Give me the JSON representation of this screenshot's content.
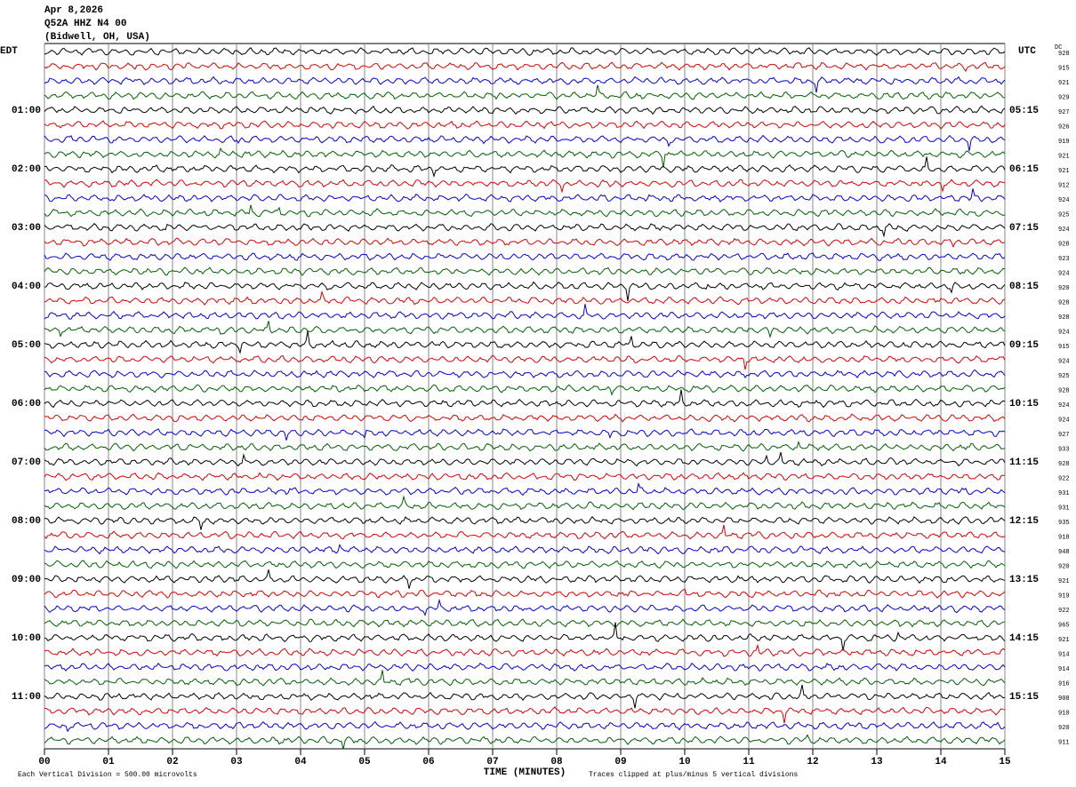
{
  "header": {
    "date": "Apr 8,2026",
    "station": "Q52A HHZ N4 00",
    "location": "(Bidwell, OH, USA)"
  },
  "left_zone": "EDT",
  "right_zone": "UTC",
  "dc_header": "DC",
  "left_hours": [
    "01:00",
    "02:00",
    "03:00",
    "04:00",
    "05:00",
    "06:00",
    "07:00",
    "08:00",
    "09:00",
    "10:00",
    "11:00"
  ],
  "right_hours": [
    "05:15",
    "06:15",
    "07:15",
    "08:15",
    "09:15",
    "10:15",
    "11:15",
    "12:15",
    "13:15",
    "14:15",
    "15:15"
  ],
  "dc_values": [
    928,
    915,
    921,
    929,
    927,
    926,
    919,
    921,
    921,
    912,
    924,
    925,
    924,
    928,
    923,
    924,
    920,
    928,
    928,
    924,
    915,
    924,
    925,
    928,
    924,
    924,
    927,
    933,
    928,
    922,
    931,
    931,
    935,
    918,
    948,
    920,
    921,
    919,
    922,
    965,
    921,
    914,
    914,
    916,
    908,
    910,
    920,
    911
  ],
  "x_ticks": [
    "00",
    "01",
    "02",
    "03",
    "04",
    "05",
    "06",
    "07",
    "08",
    "09",
    "10",
    "11",
    "12",
    "13",
    "14",
    "15"
  ],
  "x_label": "TIME (MINUTES)",
  "footer_left": "Each Vertical Division =  500.00 microvolts",
  "footer_right": "Traces clipped at plus/minus 5 vertical divisions",
  "trace_colors": [
    "#000000",
    "#e00000",
    "#0000e0",
    "#006000"
  ]
}
